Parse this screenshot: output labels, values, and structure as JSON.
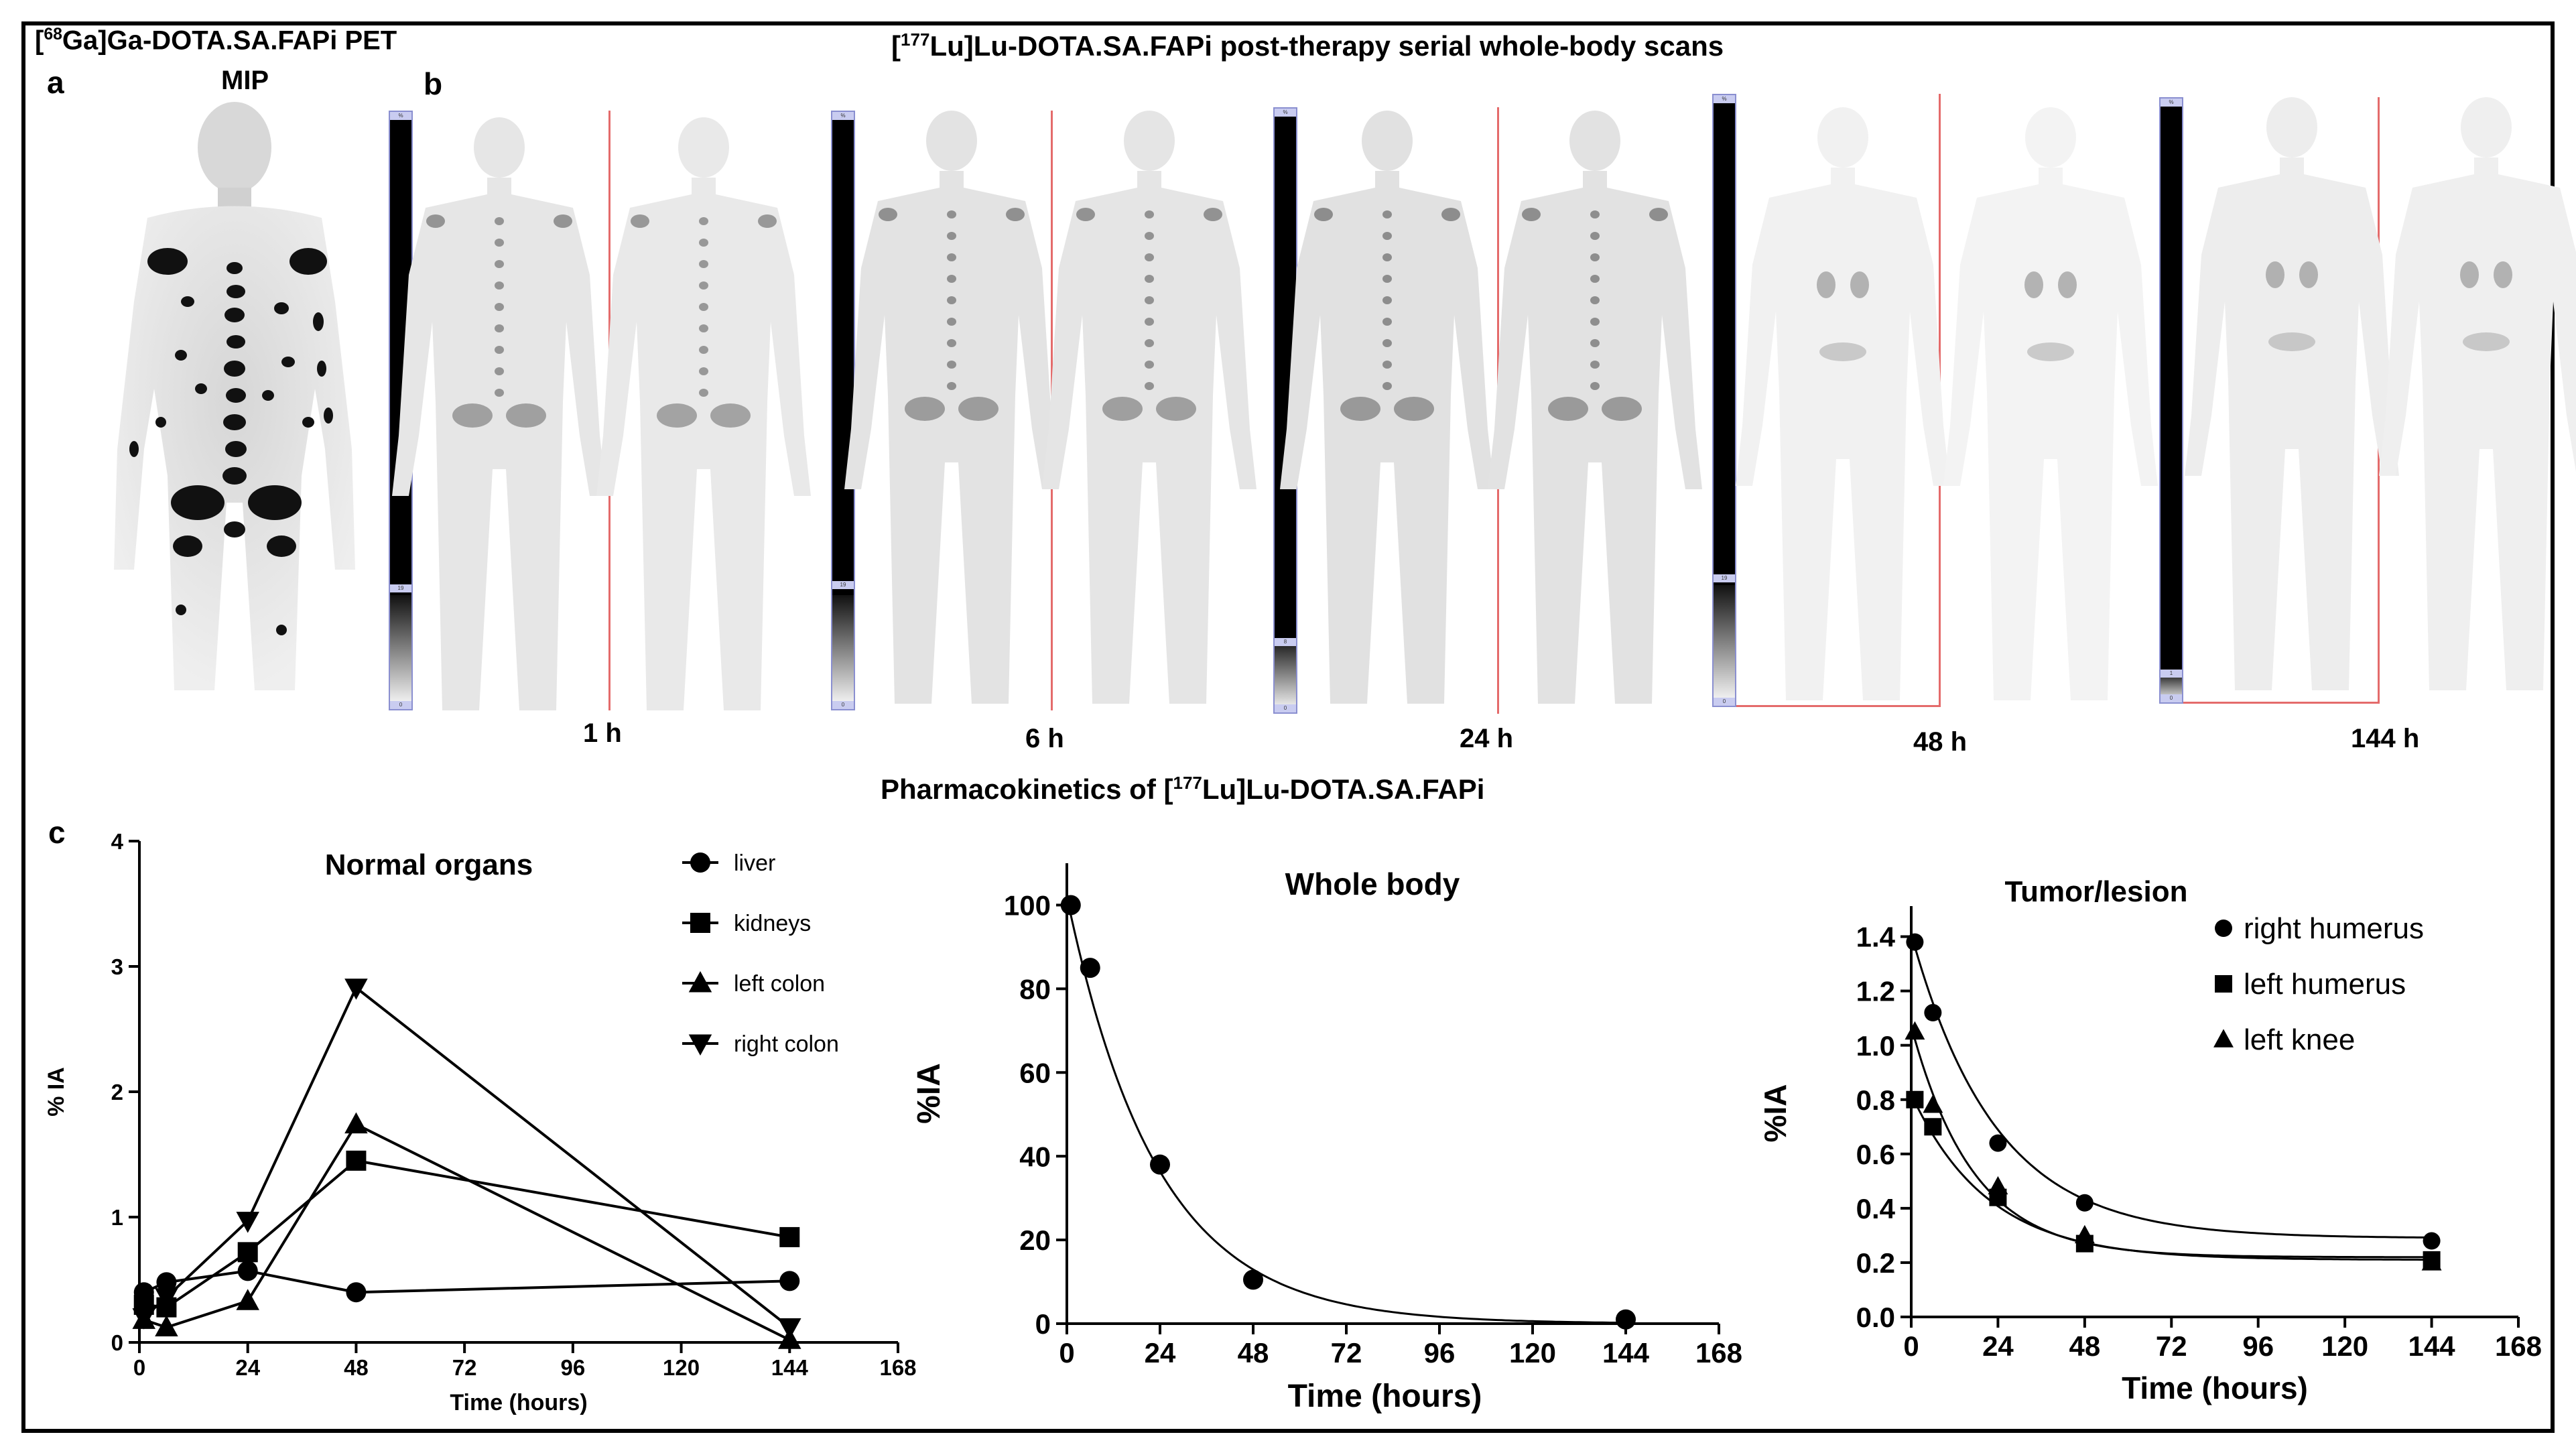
{
  "panel_a": {
    "letter": "a",
    "title_line1_tracer": "68",
    "title_line1_text": "Ga]Ga-DOTA.SA.FAPi  PET",
    "title_line2": "MIP"
  },
  "panel_b": {
    "letter": "b",
    "title_pre": "[",
    "title_iso": "177",
    "title_post": "Lu]Lu-DOTA.SA.FAPi  post-therapy serial whole-body scans",
    "timepoints": [
      "1 h",
      "6 h",
      "24 h",
      "48 h",
      "144 h"
    ]
  },
  "panel_c": {
    "letter": "c",
    "title_pre": "Pharmacokinetics of [",
    "title_iso": "177",
    "title_post": "Lu]Lu-DOTA.SA.FAPi"
  },
  "chart_data": [
    {
      "type": "line",
      "title": "Normal organs",
      "xlabel": "Time (hours)",
      "ylabel": "% IA",
      "xlim": [
        0,
        168
      ],
      "ylim": [
        0,
        4
      ],
      "xticks": [
        0,
        24,
        48,
        72,
        96,
        120,
        144,
        168
      ],
      "yticks": [
        0,
        1,
        2,
        3,
        4
      ],
      "series": [
        {
          "name": "liver",
          "marker": "circle",
          "x": [
            1,
            6,
            24,
            48,
            144
          ],
          "values": [
            0.4,
            0.48,
            0.57,
            0.4,
            0.49
          ]
        },
        {
          "name": "kidneys",
          "marker": "square",
          "x": [
            1,
            6,
            24,
            48,
            144
          ],
          "values": [
            0.3,
            0.28,
            0.72,
            1.45,
            0.84
          ]
        },
        {
          "name": "left colon",
          "marker": "triangle-up",
          "x": [
            1,
            6,
            24,
            48,
            144
          ],
          "values": [
            0.18,
            0.12,
            0.33,
            1.74,
            0.02
          ]
        },
        {
          "name": "right colon",
          "marker": "triangle-down",
          "x": [
            1,
            6,
            24,
            48,
            144
          ],
          "values": [
            0.2,
            0.36,
            0.97,
            2.83,
            0.12
          ]
        }
      ]
    },
    {
      "type": "scatter",
      "title": "Whole body",
      "xlabel": "Time (hours)",
      "ylabel": "%IA",
      "xlim": [
        0,
        168
      ],
      "ylim": [
        0,
        110
      ],
      "xticks": [
        0,
        24,
        48,
        72,
        96,
        120,
        144,
        168
      ],
      "yticks": [
        0,
        20,
        40,
        60,
        80,
        100
      ],
      "series": [
        {
          "name": "whole body",
          "marker": "circle",
          "x": [
            1,
            6,
            24,
            48,
            144
          ],
          "values": [
            100,
            85,
            38,
            10.5,
            1
          ]
        }
      ],
      "fit": {
        "model": "mono-exponential",
        "a": 102,
        "k": 0.043,
        "c": 0
      }
    },
    {
      "type": "scatter",
      "title": "Tumor/lesion",
      "xlabel": "Time (hours)",
      "ylabel": "%IA",
      "xlim": [
        0,
        168
      ],
      "ylim": [
        0,
        1.5
      ],
      "xticks": [
        0,
        24,
        48,
        72,
        96,
        120,
        144,
        168
      ],
      "yticks": [
        "0.0",
        "0.2",
        "0.4",
        "0.6",
        "0.8",
        "1.0",
        "1.2",
        "1.4"
      ],
      "series": [
        {
          "name": "right humerus",
          "marker": "circle",
          "x": [
            1,
            6,
            24,
            48,
            144
          ],
          "values": [
            1.38,
            1.12,
            0.64,
            0.42,
            0.28
          ],
          "fit": {
            "a": 1.12,
            "k": 0.043,
            "c": 0.29
          }
        },
        {
          "name": "left humerus",
          "marker": "square",
          "x": [
            1,
            6,
            24,
            48,
            144
          ],
          "values": [
            0.8,
            0.7,
            0.44,
            0.27,
            0.21
          ],
          "fit": {
            "a": 0.61,
            "k": 0.047,
            "c": 0.21
          }
        },
        {
          "name": "left knee",
          "marker": "triangle-up",
          "x": [
            1,
            6,
            24,
            48,
            144
          ],
          "values": [
            1.05,
            0.78,
            0.48,
            0.3,
            0.2
          ],
          "fit": {
            "a": 0.85,
            "k": 0.058,
            "c": 0.22
          }
        }
      ]
    }
  ]
}
